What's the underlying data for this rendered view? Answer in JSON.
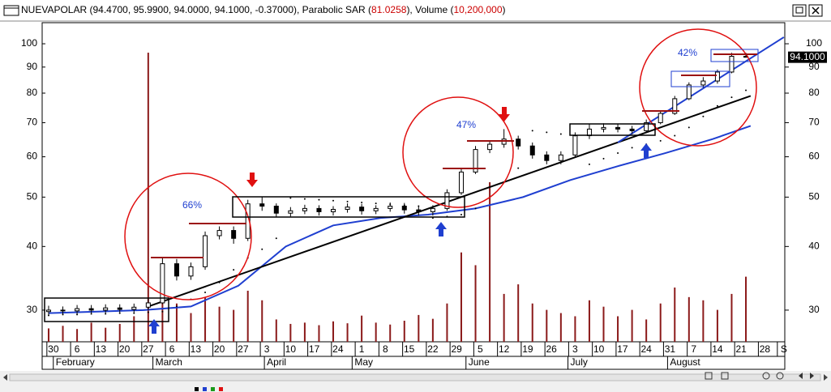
{
  "chart_data": {
    "type": "candlestick",
    "title_parts": [
      {
        "text": "NUEVAPOLAR (94.4700, 95.9900, 94.0000, 94.1000, -0.37000), Parabolic SAR (",
        "color": "#000000"
      },
      {
        "text": "81.0258",
        "color": "#cc0000"
      },
      {
        "text": "), Volume (",
        "color": "#000000"
      },
      {
        "text": "10,200,000",
        "color": "#cc0000"
      },
      {
        "text": ")",
        "color": "#000000"
      }
    ],
    "log_scale": true,
    "ylim": [
      26,
      110
    ],
    "yticks": [
      30,
      40,
      50,
      60,
      70,
      80,
      90,
      100
    ],
    "xlim": [
      -0.85,
      155.2
    ],
    "xticks": [
      {
        "value": 1,
        "label": "30"
      },
      {
        "value": 6,
        "label": "6"
      },
      {
        "value": 11,
        "label": "13"
      },
      {
        "value": 16,
        "label": "20"
      },
      {
        "value": 21,
        "label": "27"
      },
      {
        "value": 26,
        "label": "6"
      },
      {
        "value": 31,
        "label": "13"
      },
      {
        "value": 36,
        "label": "20"
      },
      {
        "value": 41,
        "label": "27"
      },
      {
        "value": 46,
        "label": "3"
      },
      {
        "value": 51,
        "label": "10"
      },
      {
        "value": 56,
        "label": "17"
      },
      {
        "value": 61,
        "label": "24"
      },
      {
        "value": 66,
        "label": "1"
      },
      {
        "value": 71,
        "label": "8"
      },
      {
        "value": 76,
        "label": "15"
      },
      {
        "value": 81,
        "label": "22"
      },
      {
        "value": 86,
        "label": "29"
      },
      {
        "value": 91,
        "label": "5"
      },
      {
        "value": 96,
        "label": "12"
      },
      {
        "value": 101,
        "label": "19"
      },
      {
        "value": 106,
        "label": "26"
      },
      {
        "value": 111,
        "label": "3"
      },
      {
        "value": 116,
        "label": "10"
      },
      {
        "value": 121,
        "label": "17"
      },
      {
        "value": 126,
        "label": "24"
      },
      {
        "value": 131,
        "label": "31"
      },
      {
        "value": 136,
        "label": "7"
      },
      {
        "value": 141,
        "label": "14"
      },
      {
        "value": 146,
        "label": "21"
      },
      {
        "value": 151,
        "label": "28"
      },
      {
        "value": 155,
        "label": "S"
      }
    ],
    "month_labels": [
      {
        "value": 1.5,
        "label": "February"
      },
      {
        "value": 22.5,
        "label": "March"
      },
      {
        "value": 46,
        "label": "April"
      },
      {
        "value": 64.5,
        "label": "May"
      },
      {
        "value": 88.5,
        "label": "June"
      },
      {
        "value": 110,
        "label": "July"
      },
      {
        "value": 131,
        "label": "August"
      }
    ],
    "x": [
      0,
      3,
      6,
      9,
      12,
      15,
      18,
      21,
      24,
      27,
      30,
      33,
      36,
      39,
      42,
      45,
      48,
      51,
      54,
      57,
      60,
      63,
      66,
      69,
      72,
      75,
      78,
      81,
      84,
      87,
      90,
      93,
      96,
      99,
      102,
      105,
      108,
      111,
      114,
      117,
      120,
      123,
      126,
      129,
      132,
      135,
      138,
      141,
      144,
      147
    ],
    "open": [
      29.8,
      30.0,
      29.9,
      30.2,
      30.0,
      30.3,
      30.1,
      30.4,
      31.0,
      37.0,
      35.0,
      36.5,
      42.0,
      43.0,
      41.5,
      48.5,
      48.0,
      46.5,
      47.0,
      47.5,
      46.8,
      47.3,
      47.8,
      47.0,
      47.5,
      48.0,
      47.2,
      46.8,
      47.5,
      51.0,
      56.0,
      62.0,
      63.5,
      65.0,
      63.0,
      60.5,
      59.0,
      60.5,
      66.0,
      68.0,
      68.5,
      68.0,
      67.5,
      70.0,
      73.0,
      78.0,
      83.0,
      84.5,
      88.0,
      94.47
    ],
    "high": [
      30.6,
      30.5,
      30.7,
      30.7,
      30.8,
      30.8,
      30.9,
      31.6,
      38.0,
      37.8,
      37.2,
      42.8,
      43.8,
      43.8,
      49.4,
      50.0,
      48.6,
      47.8,
      48.3,
      48.2,
      48.0,
      48.6,
      48.5,
      48.2,
      48.8,
      48.7,
      47.9,
      48.2,
      51.8,
      57.0,
      63.0,
      64.5,
      68.0,
      66.0,
      64.0,
      61.5,
      61.5,
      67.0,
      69.5,
      69.8,
      69.5,
      69.0,
      71.0,
      74.0,
      79.0,
      84.0,
      86.0,
      89.0,
      96.0,
      95.99
    ],
    "low": [
      29.2,
      29.4,
      29.5,
      29.6,
      29.6,
      29.7,
      29.7,
      30.0,
      30.8,
      34.3,
      34.4,
      36.0,
      41.3,
      40.5,
      41.0,
      47.0,
      45.6,
      45.8,
      46.3,
      46.0,
      46.0,
      46.6,
      46.2,
      46.3,
      46.8,
      46.4,
      46.0,
      46.0,
      47.0,
      50.5,
      55.5,
      61.0,
      62.5,
      62.0,
      59.5,
      58.0,
      58.0,
      60.0,
      65.0,
      67.0,
      67.0,
      66.5,
      66.8,
      69.5,
      72.5,
      77.5,
      82.0,
      83.5,
      87.5,
      94.0
    ],
    "close": [
      30.0,
      29.9,
      30.2,
      30.0,
      30.3,
      30.1,
      30.4,
      31.0,
      37.0,
      35.0,
      36.5,
      42.0,
      43.0,
      41.5,
      48.5,
      48.0,
      46.5,
      47.0,
      47.5,
      46.8,
      47.3,
      47.8,
      47.0,
      47.5,
      48.0,
      47.2,
      46.8,
      47.5,
      51.0,
      56.0,
      62.0,
      63.5,
      65.0,
      63.0,
      60.5,
      59.0,
      60.5,
      66.0,
      68.0,
      68.5,
      68.0,
      67.5,
      70.0,
      73.0,
      78.0,
      83.0,
      84.5,
      88.0,
      94.5,
      94.1
    ],
    "sar": [
      29.3,
      29.4,
      29.4,
      29.5,
      29.5,
      29.6,
      29.6,
      29.7,
      29.8,
      30.5,
      31.5,
      32.5,
      34.0,
      36.0,
      38.0,
      39.5,
      41.5,
      49.8,
      49.6,
      49.4,
      49.2,
      49.0,
      48.8,
      48.6,
      48.4,
      48.2,
      48.0,
      45.5,
      45.8,
      46.2,
      47.5,
      50.0,
      53.5,
      57.0,
      67.5,
      67.0,
      66.5,
      66.0,
      58.0,
      59.5,
      61.0,
      62.5,
      63.5,
      64.5,
      66.0,
      68.5,
      72.0,
      75.5,
      78.5,
      81.0258
    ],
    "volume": [
      2100000,
      2500000,
      2000000,
      3000000,
      2200000,
      2800000,
      4000000,
      45300000,
      9500000,
      6000000,
      4500000,
      7000000,
      5500000,
      5000000,
      8000000,
      6500000,
      3500000,
      2800000,
      3000000,
      2600000,
      3200000,
      2900000,
      4100000,
      3000000,
      2700000,
      3300000,
      4200000,
      3600000,
      6000000,
      14000000,
      12000000,
      25000000,
      7500000,
      9000000,
      6000000,
      5000000,
      4500000,
      4000000,
      6500000,
      5500000,
      4000000,
      5000000,
      3500000,
      6000000,
      8500000,
      7000000,
      6500000,
      5000000,
      7500000,
      10200000
    ],
    "y2lim": [
      0,
      50000000
    ],
    "volume_color": "#8b1a1a",
    "up_color": "#ffffff",
    "down_color": "#000000",
    "sar_color": "#000000",
    "lines": [
      {
        "color": "#1f3fd0",
        "x": [
          0,
          20,
          30,
          40,
          50,
          60,
          70,
          80,
          90,
          100,
          110,
          120,
          130,
          140,
          148
        ],
        "values": [
          29.6,
          30.0,
          30.5,
          33.5,
          40,
          44,
          45.5,
          46.2,
          47.5,
          50,
          54,
          57.5,
          61,
          65,
          69
        ]
      },
      {
        "color": "#000000",
        "x": [
          21,
          148
        ],
        "values": [
          30.5,
          79
        ]
      },
      {
        "color": "#1f3fd0",
        "x": [
          120,
          155
        ],
        "values": [
          64,
          103
        ]
      }
    ],
    "annotations": [
      "66%",
      "47%",
      "42%"
    ],
    "last_price_label": "94.1000"
  }
}
